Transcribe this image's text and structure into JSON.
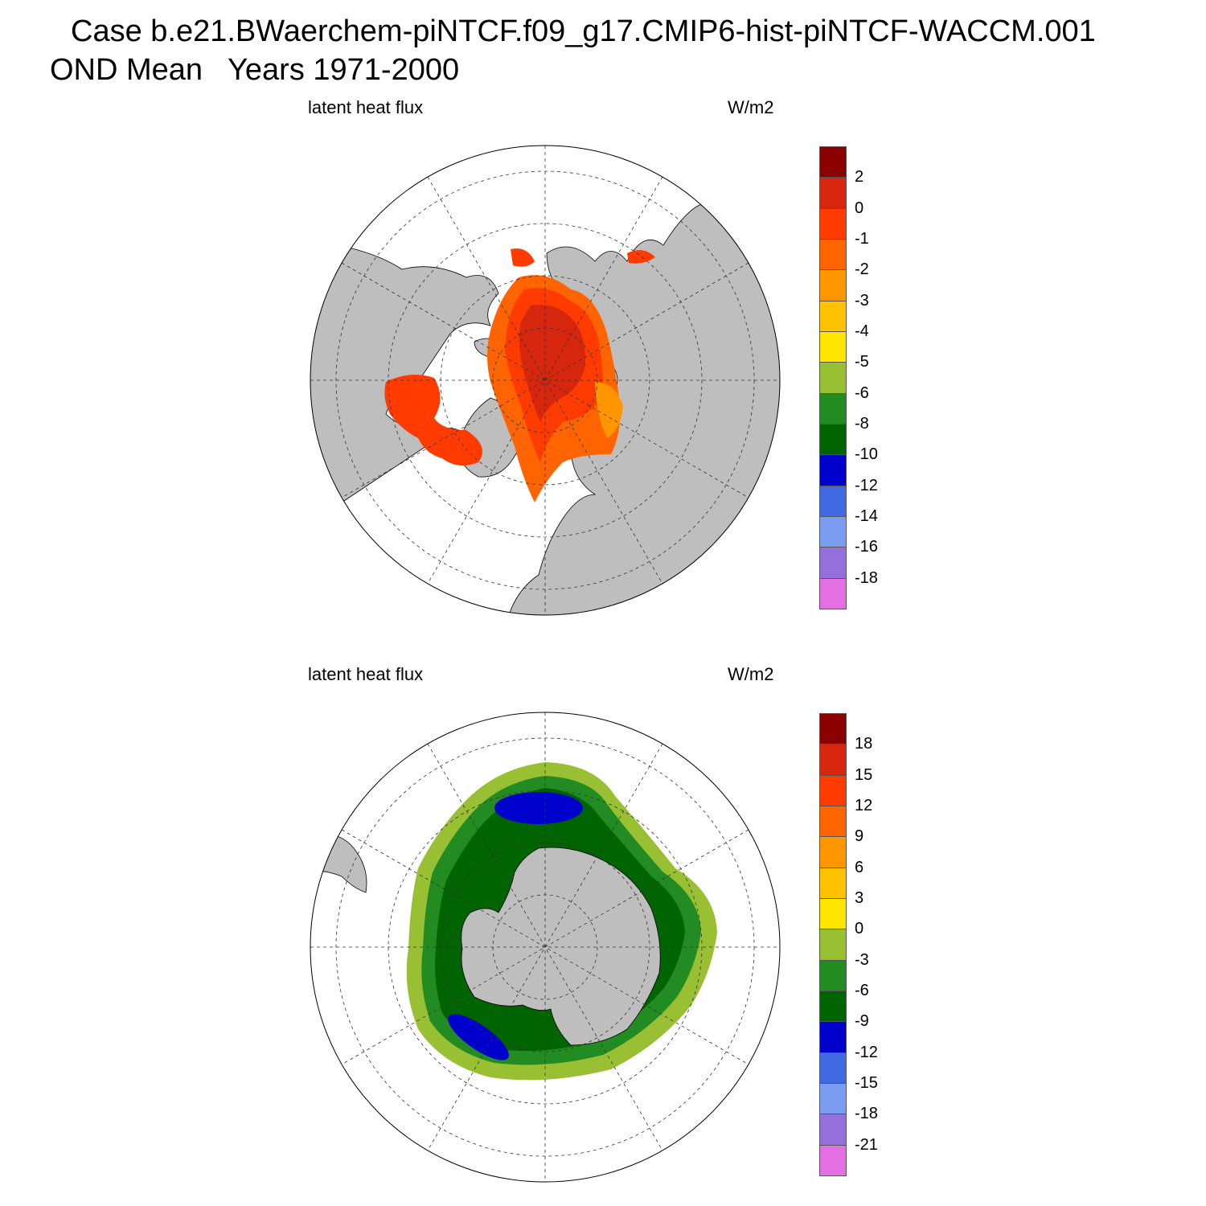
{
  "figure": {
    "title": "Case b.e21.BWaerchem-piNTCF.f09_g17.CMIP6-hist-piNTCF-WACCM.001",
    "subtitle": "OND Mean   Years 1971-2000"
  },
  "panels": [
    {
      "hemisphere": "north",
      "variable": "latent heat flux",
      "units": "W/m2",
      "colorbar": {
        "colors": [
          "#8b0000",
          "#d6260e",
          "#ff3b00",
          "#ff6400",
          "#ff9600",
          "#ffc200",
          "#ffe600",
          "#98c032",
          "#228b22",
          "#006400",
          "#0000cd",
          "#4169e1",
          "#7b9cf0",
          "#9370db",
          "#e36fe0"
        ],
        "labels": [
          "2",
          "0",
          "-1",
          "-2",
          "-3",
          "-4",
          "-5",
          "-6",
          "-8",
          "-10",
          "-12",
          "-14",
          "-16",
          "-18"
        ]
      }
    },
    {
      "hemisphere": "south",
      "variable": "latent heat flux",
      "units": "W/m2",
      "colorbar": {
        "colors": [
          "#8b0000",
          "#d6260e",
          "#ff3b00",
          "#ff6400",
          "#ff9600",
          "#ffc200",
          "#ffe600",
          "#98c032",
          "#228b22",
          "#006400",
          "#0000cd",
          "#4169e1",
          "#7b9cf0",
          "#9370db",
          "#e36fe0"
        ],
        "labels": [
          "18",
          "15",
          "12",
          "9",
          "6",
          "3",
          "0",
          "-3",
          "-6",
          "-9",
          "-12",
          "-15",
          "-18",
          "-21"
        ]
      }
    }
  ],
  "colors": {
    "land": "#bebebe",
    "ocean_missing": "#ffffff"
  }
}
